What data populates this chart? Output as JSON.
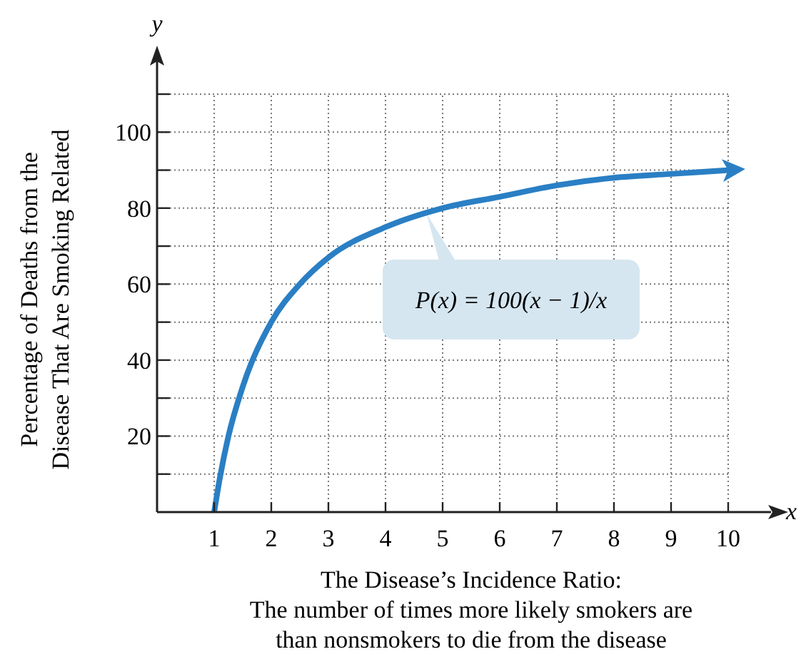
{
  "chart_data": {
    "type": "line",
    "xlabel": "The Disease’s Incidence Ratio:\nThe number of times more likely smokers are\nthan nonsmokers to die from the disease",
    "ylabel": "Percentage of Deaths from the\nDisease That Are Smoking Related",
    "x": [
      1,
      1.1,
      1.25,
      1.5,
      2,
      2.5,
      3,
      4,
      5,
      6,
      7,
      8,
      9,
      10
    ],
    "series": [
      {
        "color": "#2a7fc4",
        "values": [
          0,
          9,
          20,
          33,
          50,
          60,
          67,
          75,
          80,
          83,
          86,
          88,
          89,
          90
        ]
      }
    ],
    "xlim": [
      0,
      10
    ],
    "ylim": [
      0,
      110
    ],
    "xticks": [
      1,
      2,
      3,
      4,
      5,
      6,
      7,
      8,
      9,
      10
    ],
    "yticks": [
      {
        "value": 10,
        "label": null
      },
      20,
      {
        "value": 30,
        "label": null
      },
      40,
      {
        "value": 50,
        "label": null
      },
      60,
      {
        "value": 70,
        "label": null
      },
      80,
      {
        "value": 90,
        "label": null
      },
      100,
      {
        "value": 110,
        "label": null
      }
    ],
    "grid": true,
    "marker": "none",
    "line_style": "solid",
    "annotations": [
      "y",
      "x",
      "P(x) = 100(x − 1)/x"
    ]
  }
}
